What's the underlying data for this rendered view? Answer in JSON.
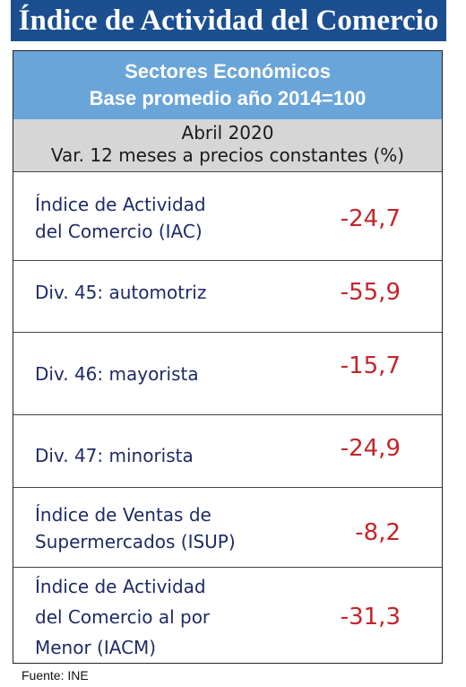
{
  "title": "Índice de Actividad del Comercio",
  "header": {
    "line1": "Sectores Económicos",
    "line2": "Base promedio año 2014=100"
  },
  "subheader": {
    "line1": "Abril 2020",
    "line2": "Var. 12 meses a precios constantes (%)"
  },
  "rows": [
    {
      "label_lines": [
        "Índice de Actividad",
        "del Comercio (IAC)"
      ],
      "value": "-24,7"
    },
    {
      "label_lines": [
        "Div. 45: automotriz"
      ],
      "value": "-55,9"
    },
    {
      "label_lines": [
        "Div. 46: mayorista"
      ],
      "value": "-15,7"
    },
    {
      "label_lines": [
        "Div. 47: minorista"
      ],
      "value": "-24,9"
    },
    {
      "label_lines": [
        "Índice de Ventas de",
        "Supermercados (ISUP)"
      ],
      "value": "-8,2"
    },
    {
      "label_lines": [
        "Índice de Actividad",
        "del Comercio al por",
        "Menor (IACM)"
      ],
      "value": "-31,3"
    }
  ],
  "source": "Fuente: INE",
  "colors": {
    "title_bg": "#1b4f8f",
    "header_bg": "#6aa5d9",
    "subheader_bg": "#d6d6d6",
    "label_text": "#1f2a66",
    "value_text": "#c4252a"
  }
}
